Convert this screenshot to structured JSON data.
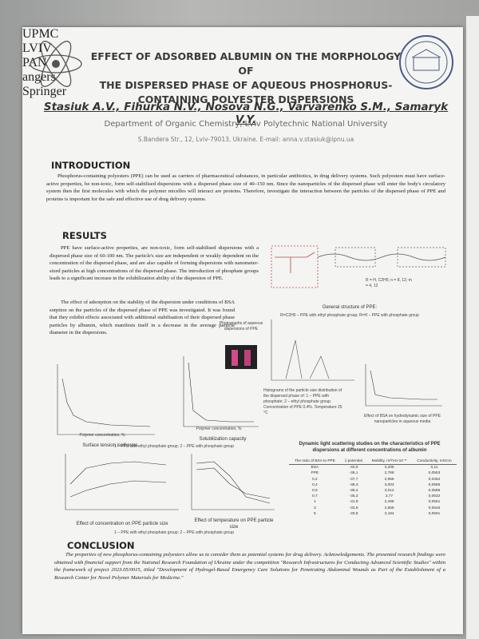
{
  "header": {
    "title": [
      "EFFECT OF ADSORBED ALBUMIN ON THE MORPHOLOGY OF",
      "THE DISPERSED PHASE OF AQUEOUS PHOSPHORUS-",
      "CONTAINING POLYESTER DISPERSIONS"
    ],
    "authors": "Stasiuk A.V., Fihurka N.V., Nosova N.G., Varvarenko S.M., Samaryk V.Y.",
    "department": "Department of Organic Chemistry, Lviv Polytechnic National University",
    "address": "S.Bandera Str., 12, Lviv-79013, Ukraine. E-mail: anna.v.stasiuk@lpnu.ua"
  },
  "introduction": {
    "heading": "INTRODUCTION",
    "text": "Phosphorus-containing polyesters (PPE) can be used as carriers of pharmaceutical substances, in particular antibiotics, in drug delivery systems. Such polyesters must have surface-active properties, be non-toxic, form self-stabilised dispersions with a dispersed phase size of 40–150 nm. Since the nanoparticles of the dispersed phase will enter the body's circulatory system then the first molecules with which the polymer micelles will interact are proteins. Therefore, investigate the interaction between the particles of the dispersed phase of PPE and proteins is important for the safe and effective use of drug delivery systems."
  },
  "results": {
    "heading": "RESULTS",
    "text": [
      "PPE have surface-active properties, are non-toxic, form self-stabilised dispersions with a dispersed phase size of 60-100 nm. The particle's size are independent or weakly dependent on the concentration of the dispersed phase, and are also capable of forming dispersions with nanometer-sized particles at high concentrations of the dispersed phase. The introduction of phosphate groups leads to a significant increase in the solubilization ability of the dispersion of PPE.",
      "The effect of adsorption on the stability of the dispersion under conditions of BSA sorption on the particles of the dispersed phase of PPE was investigated. It was found that they exhibit effects associated with additional stabilisation of their dispersed phase particles by albumin, which manifests itself in a decrease in the average particle diameter in the dispersions."
    ],
    "structure_legend": "R = H, C2H5; n = 8, 12; m = 4, 12",
    "structure_caption": "General structure of PPE:",
    "structure_formula": "R=C2H5 – PPE with ethyl phosphate group; R=H – PPE with phosphate group",
    "photo_caption": "Photographs of aqueous dispersions of PPE",
    "distribution_caption": "Histograms of the particle size distribution of the dispersed phase of: 1 – PPE with phosphate; 2 – ethyl phosphate group. Concentration of PPE 0.4%. Temperature 25 °C",
    "bsa_caption": "Effect of BSA on hydrodynamic size of PPE nanoparticles in aqueous media",
    "axis_concentration": [
      "Polymer concentration, %",
      "Polymer concentration, %"
    ],
    "surface_caption": "Surface tension isotherms",
    "solubilization_caption": "Solubilization capacity",
    "legend": [
      "1 – PPE with ethyl phosphate group; 2 – PPE with phosphate group",
      "1 – PPE with ethyl phosphate group; 2 – PPE with phosphate group"
    ],
    "concentration_caption": "Effect of concentration on PPE particle size",
    "temperature_caption": "Effect of temperature on PPE particle size"
  },
  "table": {
    "caption": "Dynamic light scattering studies on the characteristics of PPE dispersions at different concentrations of albumin",
    "header": [
      "The ratio of BSA to PPE",
      "ζ-potential",
      "Mobility, m²/Vs×10⁻⁸",
      "Conductivity, mS/cm"
    ],
    "rows": [
      [
        "BSA",
        "-40,9",
        "3,205",
        "0,11"
      ],
      [
        "PPE",
        "-35,1",
        "2,768",
        "0,0553"
      ],
      [
        "0,2",
        "-37,7",
        "2,956",
        "0,0462"
      ],
      [
        "0,4",
        "-38,3",
        "3,003",
        "0,0585"
      ],
      [
        "0,5",
        "-38,4",
        "3,012",
        "0,0586"
      ],
      [
        "0,7",
        "-35,3",
        "2,77",
        "0,0632"
      ],
      [
        "1",
        "-31,9",
        "2,498",
        "0,0561"
      ],
      [
        "3",
        "-33,9",
        "2,666",
        "0,0546"
      ],
      [
        "5",
        "-40,6",
        "3,184",
        "0,0591"
      ]
    ]
  },
  "conclusion": {
    "heading": "CONCLUSION",
    "text": "The properties of new phosphorus-containing polyesters allow us to consider them as potential systems for drug delivery. Acknowledgements. The presented research findings were obtained with financial support from the National Research Foundation of Ukraine under the competition \"Research Infrastructures for Conducting Advanced Scientific Studies\" within the framework of project 2023.05/0015, titled \"Development of Hydrogel-Based Emergency Care Solutions for Penetrating Abdominal Wounds as Part of the Establishment of a Research Center for Novel Polymer Materials for Medicine.\""
  },
  "logos": [
    "UPMC",
    "LVIV",
    "PAN",
    "angers",
    "Springer"
  ]
}
